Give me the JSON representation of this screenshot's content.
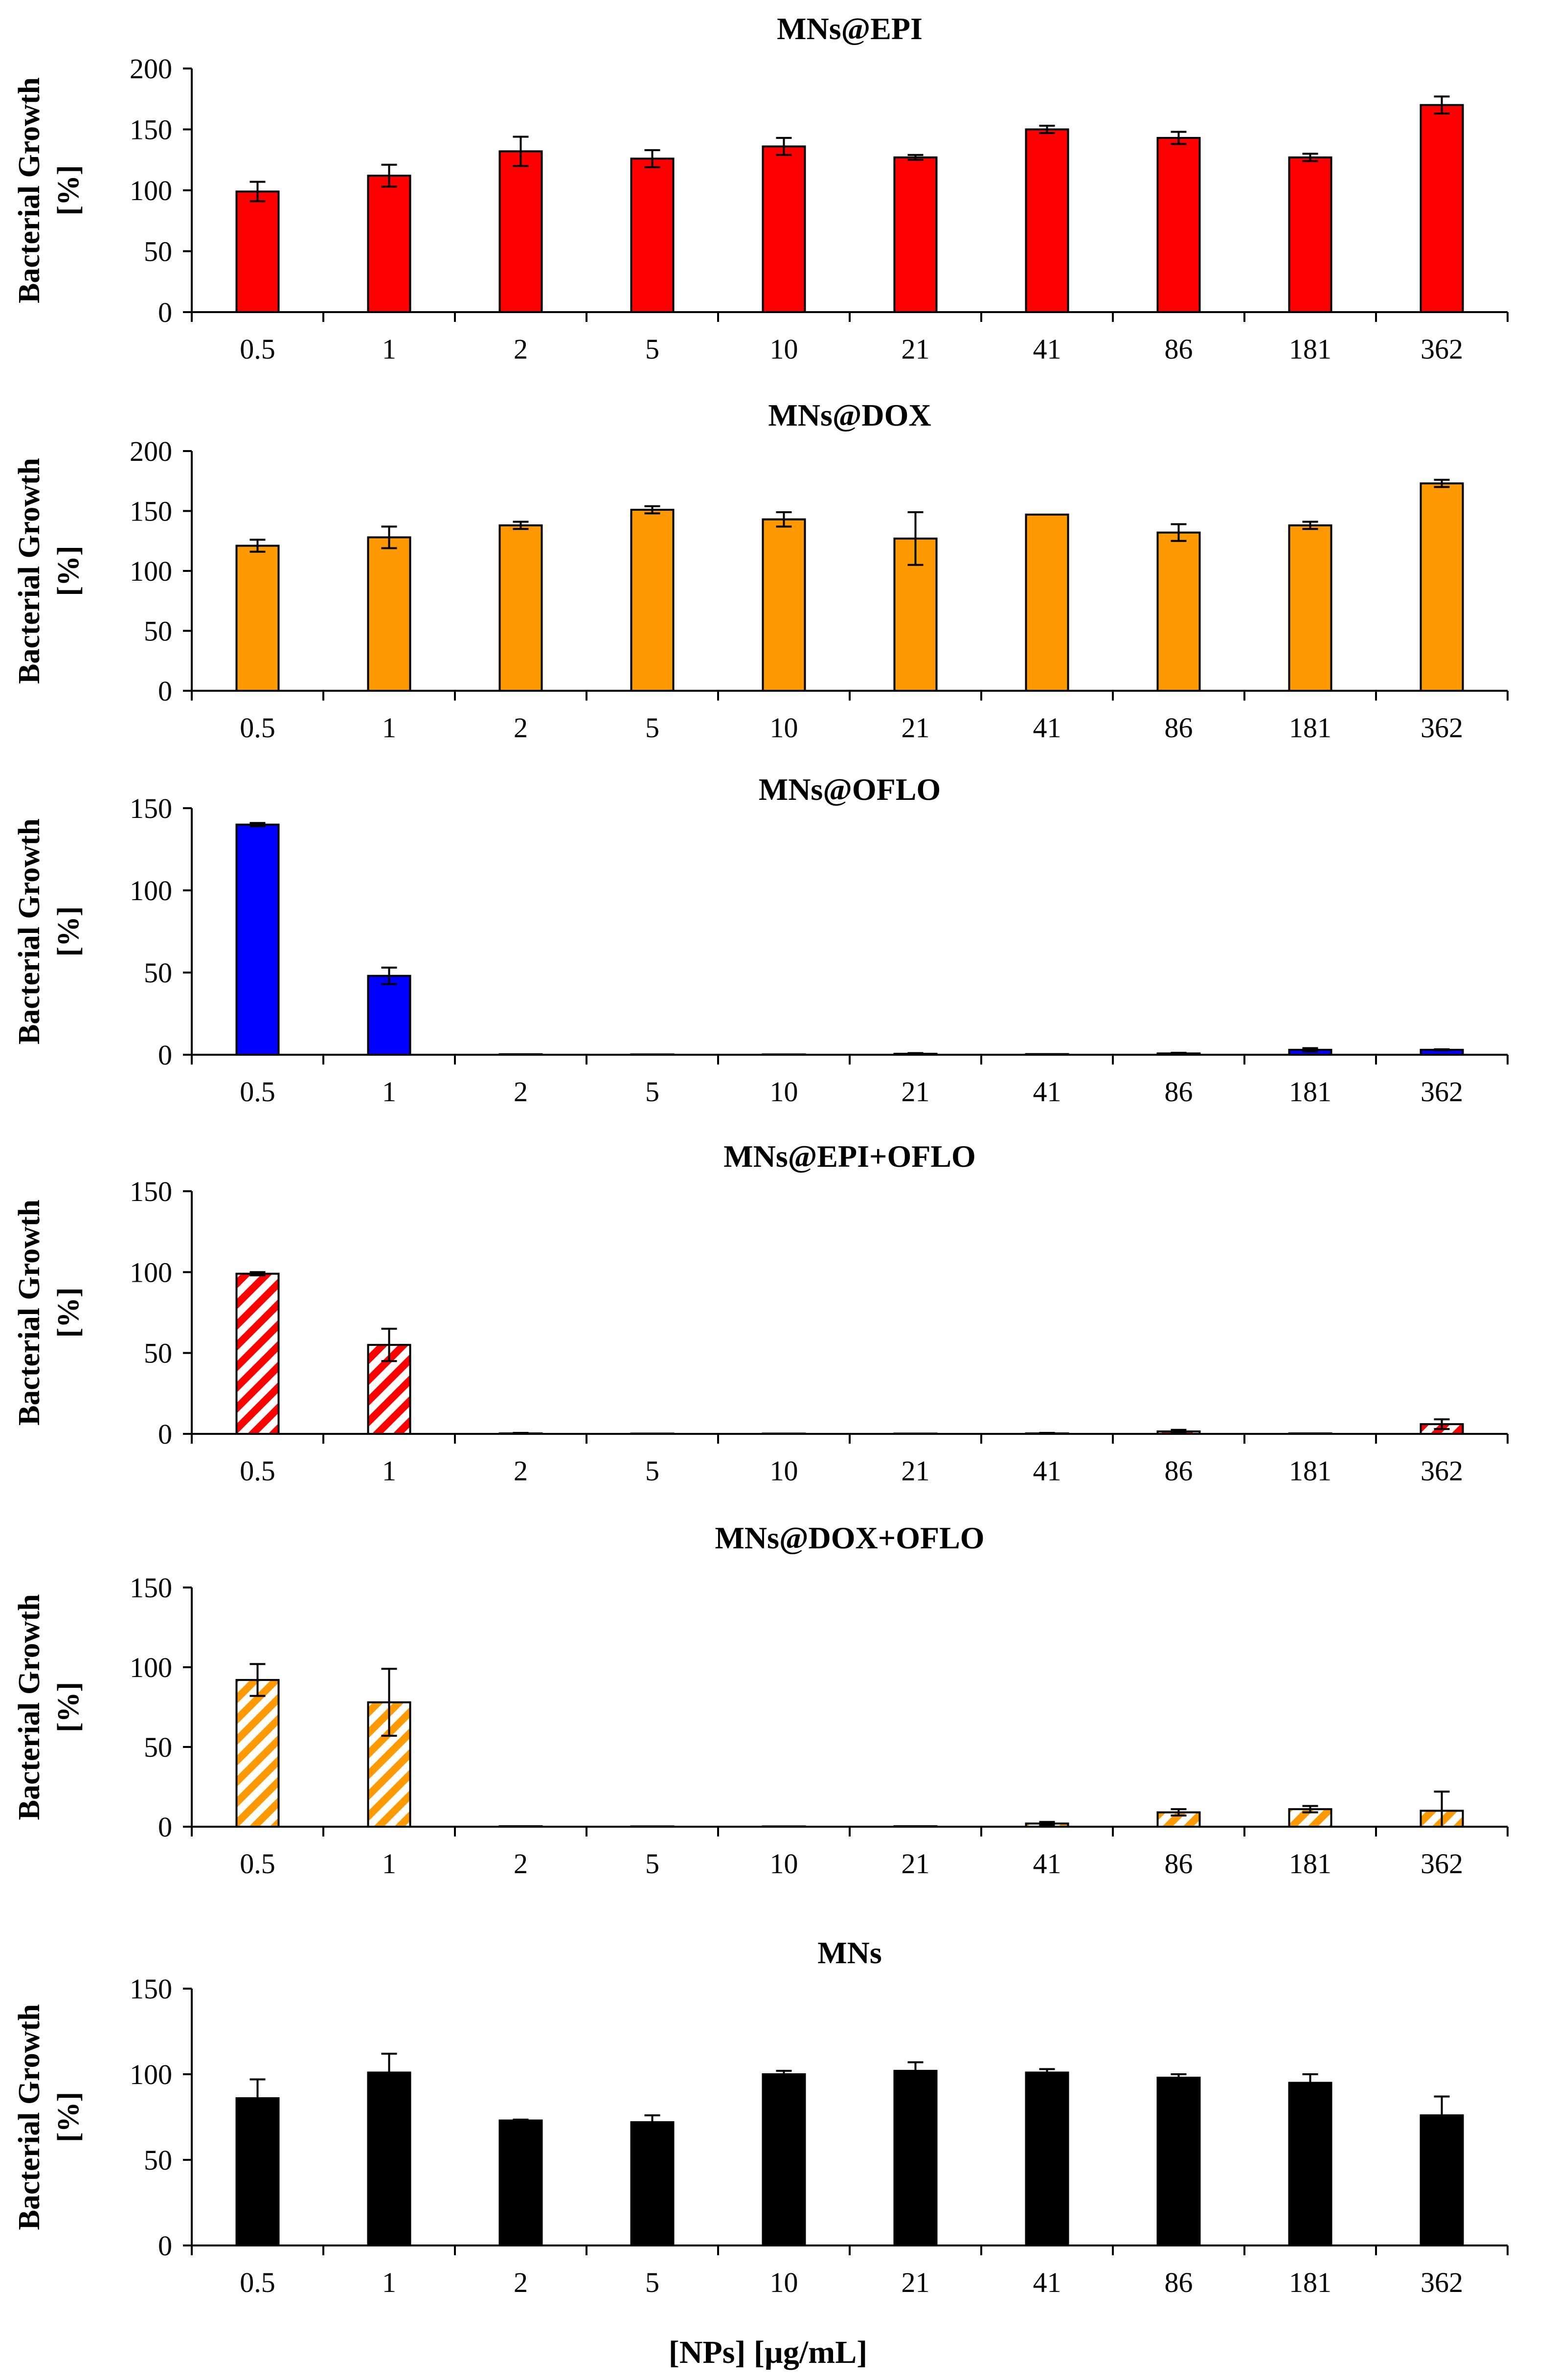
{
  "figure": {
    "xlabel": "[NPs] [µg/mL]",
    "colors": {
      "axis": "#000000",
      "bar_edge": "#000000",
      "background": "#ffffff"
    }
  },
  "chart_data": [
    {
      "type": "bar",
      "title": "MNs@EPI",
      "ylabel_line1": "Bacterial Growth",
      "ylabel_line2": "[%]",
      "xlabel": "",
      "categories": [
        "0.5",
        "1",
        "2",
        "5",
        "10",
        "21",
        "41",
        "86",
        "181",
        "362"
      ],
      "values": [
        99,
        112,
        132,
        126,
        136,
        127,
        150,
        143,
        127,
        170
      ],
      "errors": [
        8,
        9,
        12,
        7,
        7,
        2,
        3,
        5,
        3,
        7
      ],
      "ylim": [
        0,
        200
      ],
      "yticks": [
        0,
        50,
        100,
        150,
        200
      ],
      "fill": "solid",
      "color": "#ff0000"
    },
    {
      "type": "bar",
      "title": "MNs@DOX",
      "ylabel_line1": "Bacterial Growth",
      "ylabel_line2": "[%]",
      "xlabel": "",
      "categories": [
        "0.5",
        "1",
        "2",
        "5",
        "10",
        "21",
        "41",
        "86",
        "181",
        "362"
      ],
      "values": [
        121,
        128,
        138,
        151,
        143,
        127,
        147,
        132,
        138,
        173
      ],
      "errors": [
        5,
        9,
        3,
        3,
        6,
        22,
        0,
        7,
        3,
        3
      ],
      "ylim": [
        0,
        200
      ],
      "yticks": [
        0,
        50,
        100,
        150,
        200
      ],
      "fill": "solid",
      "color": "#ff9900"
    },
    {
      "type": "bar",
      "title": "MNs@OFLO",
      "ylabel_line1": "Bacterial Growth",
      "ylabel_line2": "[%]",
      "xlabel": "",
      "categories": [
        "0.5",
        "1",
        "2",
        "5",
        "10",
        "21",
        "41",
        "86",
        "181",
        "362"
      ],
      "values": [
        140,
        48,
        0.3,
        0.2,
        0.2,
        0.6,
        0.4,
        0.8,
        3,
        3
      ],
      "errors": [
        1,
        5,
        0,
        0,
        0,
        0.4,
        0,
        0.4,
        1,
        0.3
      ],
      "ylim": [
        0,
        150
      ],
      "yticks": [
        0,
        50,
        100,
        150
      ],
      "fill": "solid",
      "color": "#0000ff"
    },
    {
      "type": "bar",
      "title": "MNs@EPI+OFLO",
      "ylabel_line1": "Bacterial Growth",
      "ylabel_line2": "[%]",
      "xlabel": "",
      "categories": [
        "0.5",
        "1",
        "2",
        "5",
        "10",
        "21",
        "41",
        "86",
        "181",
        "362"
      ],
      "values": [
        99,
        55,
        0.3,
        0.2,
        0.2,
        0.2,
        0.3,
        1.5,
        0.3,
        6
      ],
      "errors": [
        1,
        10,
        0.3,
        0,
        0,
        0,
        0.3,
        1,
        0,
        3
      ],
      "ylim": [
        0,
        150
      ],
      "yticks": [
        0,
        50,
        100,
        150
      ],
      "fill": "hatched",
      "color": "#ff0000"
    },
    {
      "type": "bar",
      "title": "MNs@DOX+OFLO",
      "ylabel_line1": "Bacterial Growth",
      "ylabel_line2": "[%]",
      "xlabel": "",
      "categories": [
        "0.5",
        "1",
        "2",
        "5",
        "10",
        "21",
        "41",
        "86",
        "181",
        "362"
      ],
      "values": [
        92,
        78,
        0.3,
        0.2,
        0.2,
        0.3,
        2,
        9,
        11,
        10
      ],
      "errors": [
        10,
        21,
        0,
        0,
        0,
        0,
        1,
        2,
        2,
        12
      ],
      "ylim": [
        0,
        150
      ],
      "yticks": [
        0,
        50,
        100,
        150
      ],
      "fill": "hatched",
      "color": "#ff9900"
    },
    {
      "type": "bar",
      "title": "MNs",
      "ylabel_line1": "Bacterial Growth",
      "ylabel_line2": "[%]",
      "xlabel": "[NPs] [µg/mL]",
      "categories": [
        "0.5",
        "1",
        "2",
        "5",
        "10",
        "21",
        "41",
        "86",
        "181",
        "362"
      ],
      "values": [
        86,
        101,
        73,
        72,
        100,
        102,
        101,
        98,
        95,
        76
      ],
      "errors": [
        11,
        11,
        0.5,
        4,
        2,
        5,
        2,
        2,
        5,
        11
      ],
      "ylim": [
        0,
        150
      ],
      "yticks": [
        0,
        50,
        100,
        150
      ],
      "fill": "solid",
      "color": "#000000"
    }
  ]
}
